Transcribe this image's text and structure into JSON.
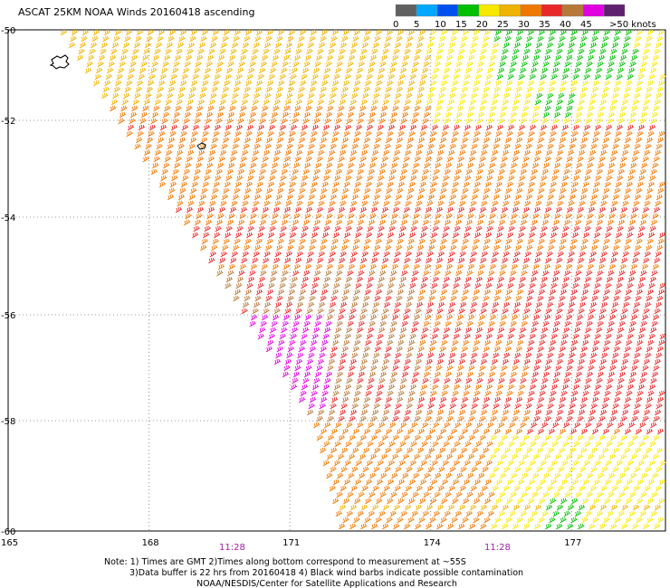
{
  "title": "ASCAT 25KM NOAA Winds 20160418 ascending",
  "legend": {
    "bins": [
      {
        "label": "0",
        "color": "#606060"
      },
      {
        "label": "5",
        "color": "#00a8ff"
      },
      {
        "label": "10",
        "color": "#0050f0"
      },
      {
        "label": "15",
        "color": "#00c000"
      },
      {
        "label": "20",
        "color": "#f8e800"
      },
      {
        "label": "25",
        "color": "#f0b400"
      },
      {
        "label": "30",
        "color": "#f07800"
      },
      {
        "label": "35",
        "color": "#e82828"
      },
      {
        "label": "40",
        "color": "#b87838"
      },
      {
        "label": "45",
        "color": "#e000e0"
      },
      {
        "label": ">50 knots",
        "color": "#602070"
      }
    ]
  },
  "axes": {
    "lat_labels": [
      "-50",
      "-52",
      "-54",
      "-56",
      "-58",
      "-60"
    ],
    "lon_labels": [
      "165",
      "168",
      "171",
      "174",
      "177"
    ]
  },
  "pass_times": [
    "11:28",
    "11:28"
  ],
  "notes": [
    "Note: 1) Times are GMT 2)Times along bottom correspond to measurement at ~55S",
    "3)Data buffer is 22 hrs from 20160418 4) Black wind barbs indicate possible contamination",
    "NOAA/NESDIS/Center for Satellite Applications and Research"
  ],
  "chart_data": {
    "type": "wind-barb-map",
    "lon_range": [
      165,
      179
    ],
    "lat_range": [
      -60,
      -50
    ],
    "grid": true,
    "wind_speed_units": "knots"
  }
}
